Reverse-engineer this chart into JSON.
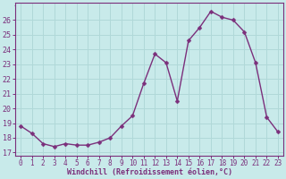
{
  "x": [
    0,
    1,
    2,
    3,
    4,
    5,
    6,
    7,
    8,
    9,
    10,
    11,
    12,
    13,
    14,
    15,
    16,
    17,
    18,
    19,
    20,
    21,
    22,
    23
  ],
  "y": [
    18.8,
    18.3,
    17.6,
    17.4,
    17.6,
    17.5,
    17.5,
    17.7,
    18.0,
    18.8,
    19.5,
    21.7,
    23.7,
    23.1,
    20.5,
    24.6,
    25.5,
    26.6,
    26.2,
    26.0,
    25.2,
    23.1,
    19.4,
    18.4
  ],
  "line_color": "#7B2F7B",
  "marker": "D",
  "markersize": 2.5,
  "linewidth": 1.0,
  "background_color": "#c8eaea",
  "grid_color": "#b0d8d8",
  "ylabel_values": [
    17,
    18,
    19,
    20,
    21,
    22,
    23,
    24,
    25,
    26
  ],
  "ylim": [
    16.8,
    27.2
  ],
  "xlim": [
    -0.5,
    23.5
  ],
  "xlabel": "Windchill (Refroidissement éolien,°C)",
  "xlabel_color": "#7B2F7B",
  "tick_color": "#7B2F7B",
  "axis_color": "#7B2F7B",
  "tick_fontsize": 5.5,
  "xlabel_fontsize": 6.0
}
